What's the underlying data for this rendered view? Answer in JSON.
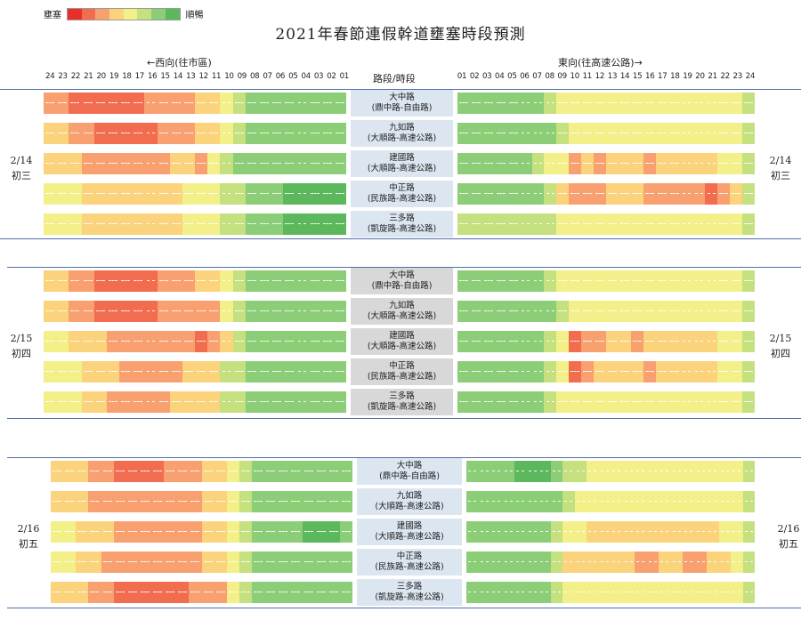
{
  "legend": {
    "left": "壅塞",
    "right": "順暢",
    "colors": [
      "#e8302a",
      "#f26c4f",
      "#f8a070",
      "#fbd37c",
      "#f3f08a",
      "#c5e07e",
      "#8ccd78",
      "#5cb85c"
    ]
  },
  "title": "2021年春節連假幹道壅塞時段預測",
  "west_label": "←西向(往市區)",
  "east_label": "東向(往高速公路)→",
  "road_header": "路段/時段",
  "hours_west": [
    "24",
    "23",
    "22",
    "21",
    "20",
    "19",
    "18",
    "17",
    "16",
    "15",
    "14",
    "13",
    "12",
    "11",
    "10",
    "09",
    "08",
    "07",
    "06",
    "05",
    "04",
    "03",
    "02",
    "01"
  ],
  "hours_east": [
    "01",
    "02",
    "03",
    "04",
    "05",
    "06",
    "07",
    "08",
    "09",
    "10",
    "11",
    "12",
    "13",
    "14",
    "15",
    "16",
    "17",
    "18",
    "19",
    "20",
    "21",
    "22",
    "23",
    "24"
  ],
  "roads": [
    {
      "name": "大中路",
      "sub": "(鼎中路-自由路)"
    },
    {
      "name": "九如路",
      "sub": "(大順路-高速公路)"
    },
    {
      "name": "建國路",
      "sub": "(大順路-高速公路)"
    },
    {
      "name": "中正路",
      "sub": "(民族路-高速公路)"
    },
    {
      "name": "三多路",
      "sub": "(凱旋路-高速公路)"
    }
  ],
  "days": [
    {
      "date": "2/14",
      "lunar": "初三",
      "west": [
        [
          2,
          2,
          1,
          1,
          1,
          1,
          1,
          1,
          2,
          2,
          2,
          2,
          3,
          3,
          4,
          5,
          6,
          6,
          6,
          6,
          6,
          6,
          6,
          6
        ],
        [
          3,
          3,
          2,
          2,
          1,
          1,
          1,
          1,
          1,
          2,
          2,
          2,
          3,
          3,
          4,
          5,
          6,
          6,
          6,
          6,
          6,
          6,
          6,
          6
        ],
        [
          3,
          3,
          3,
          2,
          2,
          2,
          2,
          2,
          2,
          2,
          3,
          3,
          2,
          4,
          5,
          6,
          6,
          6,
          6,
          6,
          6,
          6,
          6,
          6
        ],
        [
          4,
          4,
          4,
          3,
          3,
          3,
          3,
          3,
          3,
          3,
          3,
          4,
          4,
          4,
          5,
          5,
          6,
          6,
          6,
          7,
          7,
          7,
          7,
          7
        ],
        [
          4,
          4,
          4,
          3,
          3,
          3,
          3,
          3,
          3,
          3,
          3,
          4,
          4,
          4,
          5,
          5,
          6,
          6,
          6,
          7,
          7,
          7,
          7,
          7
        ]
      ],
      "east": [
        [
          6,
          6,
          6,
          6,
          6,
          6,
          6,
          5,
          4,
          4,
          4,
          4,
          4,
          4,
          4,
          4,
          4,
          4,
          4,
          4,
          4,
          4,
          4,
          5
        ],
        [
          6,
          6,
          6,
          6,
          6,
          6,
          6,
          6,
          5,
          4,
          4,
          4,
          4,
          4,
          4,
          4,
          4,
          4,
          4,
          4,
          4,
          4,
          4,
          5
        ],
        [
          6,
          6,
          6,
          6,
          6,
          6,
          5,
          4,
          4,
          2,
          3,
          2,
          3,
          3,
          3,
          2,
          3,
          3,
          3,
          3,
          3,
          4,
          4,
          5
        ],
        [
          6,
          6,
          6,
          6,
          6,
          6,
          6,
          5,
          3,
          2,
          2,
          2,
          3,
          3,
          3,
          2,
          2,
          2,
          2,
          2,
          1,
          2,
          3,
          5
        ],
        [
          5,
          5,
          5,
          5,
          5,
          5,
          5,
          5,
          4,
          4,
          4,
          4,
          4,
          4,
          4,
          4,
          4,
          4,
          4,
          4,
          4,
          4,
          4,
          5
        ]
      ]
    },
    {
      "date": "2/15",
      "lunar": "初四",
      "west": [
        [
          3,
          3,
          2,
          2,
          1,
          1,
          1,
          1,
          1,
          2,
          2,
          2,
          3,
          3,
          4,
          5,
          6,
          6,
          6,
          6,
          6,
          6,
          6,
          6
        ],
        [
          3,
          3,
          2,
          2,
          1,
          1,
          1,
          1,
          1,
          2,
          2,
          2,
          2,
          2,
          4,
          5,
          6,
          6,
          6,
          6,
          6,
          6,
          6,
          6
        ],
        [
          4,
          4,
          3,
          3,
          3,
          2,
          2,
          2,
          2,
          2,
          2,
          2,
          1,
          2,
          3,
          5,
          6,
          6,
          6,
          6,
          6,
          6,
          6,
          6
        ],
        [
          4,
          4,
          4,
          3,
          3,
          3,
          2,
          2,
          2,
          2,
          2,
          3,
          3,
          3,
          5,
          5,
          6,
          6,
          6,
          6,
          6,
          6,
          6,
          6
        ],
        [
          4,
          4,
          4,
          3,
          3,
          2,
          2,
          2,
          2,
          2,
          3,
          3,
          3,
          3,
          5,
          5,
          6,
          6,
          6,
          6,
          6,
          6,
          6,
          6
        ]
      ],
      "east": [
        [
          6,
          6,
          6,
          6,
          6,
          6,
          6,
          5,
          4,
          4,
          4,
          4,
          4,
          4,
          4,
          4,
          4,
          4,
          4,
          4,
          4,
          4,
          4,
          5
        ],
        [
          6,
          6,
          6,
          6,
          6,
          6,
          6,
          6,
          5,
          4,
          4,
          4,
          4,
          4,
          4,
          4,
          4,
          4,
          4,
          4,
          4,
          4,
          4,
          5
        ],
        [
          6,
          6,
          6,
          6,
          6,
          6,
          6,
          5,
          4,
          1,
          2,
          2,
          3,
          3,
          2,
          3,
          3,
          3,
          3,
          3,
          3,
          4,
          4,
          5
        ],
        [
          6,
          6,
          6,
          6,
          6,
          6,
          6,
          5,
          4,
          1,
          2,
          3,
          3,
          3,
          3,
          2,
          3,
          3,
          3,
          3,
          3,
          4,
          4,
          5
        ],
        [
          6,
          6,
          6,
          6,
          6,
          6,
          6,
          5,
          4,
          4,
          4,
          4,
          4,
          4,
          4,
          4,
          4,
          4,
          4,
          4,
          4,
          4,
          4,
          5
        ]
      ]
    },
    {
      "date": "2/16",
      "lunar": "初五",
      "west": [
        [
          3,
          3,
          3,
          2,
          2,
          1,
          1,
          1,
          1,
          2,
          2,
          2,
          3,
          3,
          4,
          5,
          6,
          6,
          6,
          6,
          6,
          6,
          6,
          6
        ],
        [
          3,
          3,
          3,
          2,
          2,
          2,
          2,
          2,
          2,
          2,
          2,
          2,
          3,
          3,
          4,
          5,
          6,
          6,
          6,
          6,
          6,
          6,
          6,
          6
        ],
        [
          4,
          4,
          3,
          3,
          3,
          2,
          2,
          2,
          2,
          2,
          2,
          2,
          3,
          3,
          4,
          5,
          6,
          6,
          6,
          6,
          7,
          7,
          7,
          6
        ],
        [
          4,
          4,
          3,
          3,
          2,
          2,
          2,
          2,
          2,
          2,
          2,
          2,
          3,
          3,
          4,
          5,
          6,
          6,
          6,
          6,
          6,
          6,
          6,
          6
        ],
        [
          3,
          3,
          3,
          2,
          2,
          1,
          1,
          1,
          1,
          1,
          1,
          2,
          2,
          2,
          4,
          5,
          6,
          6,
          6,
          6,
          6,
          6,
          6,
          6
        ]
      ],
      "east": [
        [
          6,
          6,
          6,
          6,
          7,
          7,
          7,
          6,
          5,
          5,
          4,
          4,
          4,
          4,
          4,
          4,
          4,
          4,
          4,
          4,
          4,
          4,
          4,
          5
        ],
        [
          6,
          6,
          6,
          6,
          6,
          6,
          6,
          6,
          5,
          4,
          4,
          4,
          4,
          4,
          4,
          4,
          4,
          4,
          4,
          4,
          4,
          4,
          4,
          5
        ],
        [
          6,
          6,
          6,
          6,
          6,
          6,
          6,
          5,
          4,
          4,
          3,
          3,
          3,
          3,
          3,
          3,
          3,
          3,
          3,
          3,
          3,
          4,
          4,
          5
        ],
        [
          6,
          6,
          6,
          6,
          6,
          6,
          6,
          5,
          3,
          3,
          3,
          3,
          3,
          3,
          2,
          2,
          3,
          3,
          2,
          2,
          3,
          3,
          4,
          5
        ],
        [
          6,
          6,
          6,
          6,
          6,
          6,
          6,
          5,
          4,
          4,
          4,
          4,
          4,
          4,
          4,
          4,
          4,
          4,
          4,
          4,
          4,
          4,
          4,
          5
        ]
      ]
    }
  ]
}
